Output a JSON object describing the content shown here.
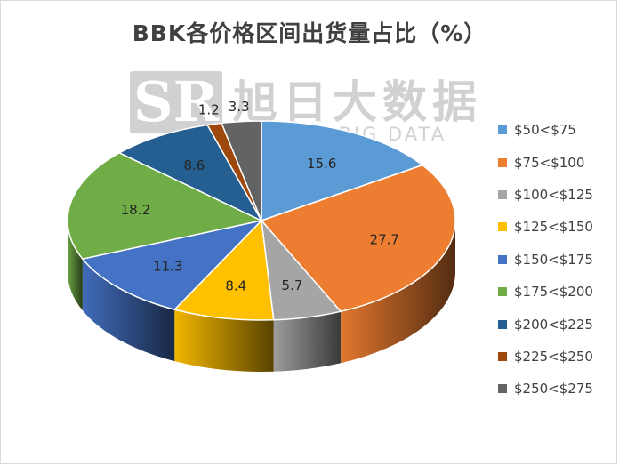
{
  "title": "BBK各价格区间出货量占比（%）",
  "watermark": {
    "logo_text": "SR",
    "name": "旭日大数据",
    "name_en": "SUNRISE BIG DATA"
  },
  "chart_data": {
    "type": "pie",
    "style": "3d-pie",
    "title": "BBK各价格区间出货量占比（%）",
    "legend_position": "right",
    "categories": [
      "$50<$75",
      "$75<$100",
      "$100<$125",
      "$125<$150",
      "$150<$175",
      "$175<$200",
      "$200<$225",
      "$225<$250",
      "$250<$275"
    ],
    "values": [
      15.6,
      27.7,
      5.7,
      8.4,
      11.3,
      18.2,
      8.6,
      1.2,
      3.3
    ],
    "colors": [
      "#5b9bd5",
      "#ed7d31",
      "#a5a5a5",
      "#ffc000",
      "#4472c4",
      "#70ad47",
      "#255e91",
      "#9e480e",
      "#636363"
    ]
  }
}
